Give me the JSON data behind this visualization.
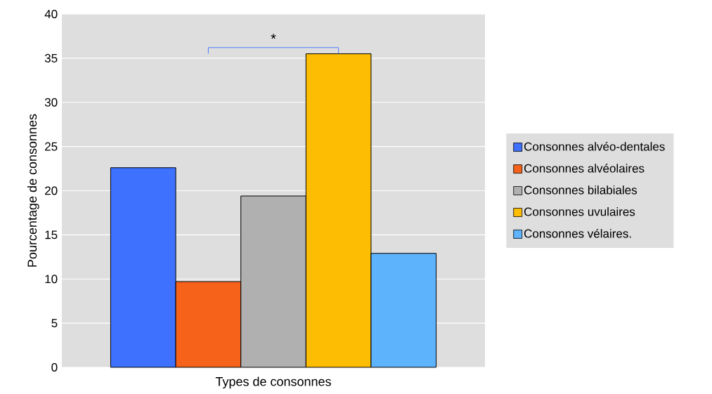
{
  "chart_data": {
    "type": "bar",
    "xlabel": "Types de consonnes",
    "ylabel": "Pourcentage de consonnes",
    "categories": [
      null
    ],
    "series": [
      {
        "name": "Consonnes alvéo-dentales",
        "color": "#3d71fe",
        "values": [
          22.6
        ]
      },
      {
        "name": "Consonnes alvéolaires",
        "color": "#f7621a",
        "values": [
          9.7
        ]
      },
      {
        "name": "Consonnes bilabiales",
        "color": "#b0b0b0",
        "values": [
          19.4
        ]
      },
      {
        "name": "Consonnes uvulaires",
        "color": "#fdbd02",
        "values": [
          35.5
        ]
      },
      {
        "name": "Consonnes vélaires.",
        "color": "#5eb3fd",
        "values": [
          12.9
        ]
      }
    ],
    "ylim": [
      0,
      40
    ],
    "yticks": [
      0,
      5,
      10,
      15,
      20,
      25,
      30,
      35,
      40
    ],
    "grid": "y",
    "legend": "right",
    "annotations": [
      "*"
    ]
  }
}
